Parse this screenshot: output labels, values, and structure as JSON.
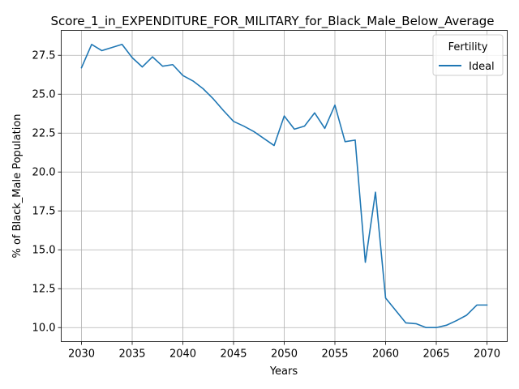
{
  "chart_data": {
    "type": "line",
    "title": "Score_1_in_EXPENDITURE_FOR_MILITARY_for_Black_Male_Below_Average",
    "xlabel": "Years",
    "ylabel": "% of Black_Male Population",
    "xlim": [
      2028.0,
      2072.0
    ],
    "ylim": [
      9.1,
      29.1
    ],
    "xticks": [
      2030,
      2035,
      2040,
      2045,
      2050,
      2055,
      2060,
      2065,
      2070
    ],
    "yticks": [
      10.0,
      12.5,
      15.0,
      17.5,
      20.0,
      22.5,
      25.0,
      27.5
    ],
    "xtick_labels": [
      "2030",
      "2035",
      "2040",
      "2045",
      "2050",
      "2055",
      "2060",
      "2065",
      "2070"
    ],
    "ytick_labels": [
      "10.0",
      "12.5",
      "15.0",
      "17.5",
      "20.0",
      "22.5",
      "25.0",
      "27.5"
    ],
    "grid": true,
    "legend": {
      "title": "Fertility",
      "placement": "top-right"
    },
    "x": [
      2030,
      2031,
      2032,
      2033,
      2034,
      2035,
      2036,
      2037,
      2038,
      2039,
      2040,
      2041,
      2042,
      2043,
      2044,
      2045,
      2046,
      2047,
      2048,
      2049,
      2050,
      2051,
      2052,
      2053,
      2054,
      2055,
      2056,
      2057,
      2058,
      2059,
      2060,
      2061,
      2062,
      2063,
      2064,
      2065,
      2066,
      2067,
      2068,
      2069,
      2070
    ],
    "series": [
      {
        "name": "Ideal",
        "color": "#1f77b4",
        "values": [
          26.7,
          28.2,
          27.8,
          28.0,
          28.2,
          27.35,
          26.75,
          27.4,
          26.8,
          26.9,
          26.2,
          25.85,
          25.35,
          24.7,
          23.95,
          23.25,
          22.95,
          22.6,
          22.15,
          21.7,
          23.6,
          22.75,
          22.95,
          23.8,
          22.8,
          24.3,
          21.95,
          22.05,
          14.2,
          18.7,
          11.9,
          11.1,
          10.3,
          10.25,
          10.0,
          10.0,
          10.15,
          10.45,
          10.8,
          11.45,
          11.45
        ]
      }
    ]
  }
}
